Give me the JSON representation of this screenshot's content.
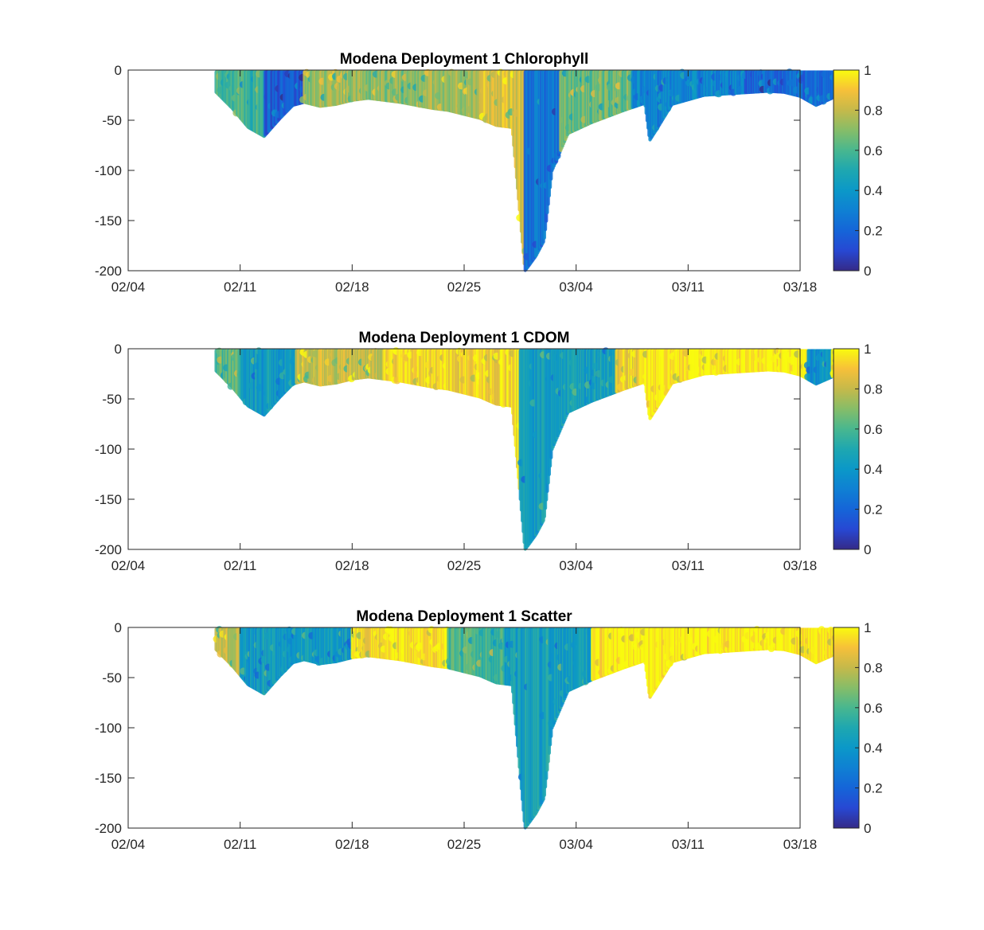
{
  "figure": {
    "background": "#ffffff"
  },
  "chart_data": [
    {
      "type": "scatter",
      "title": "Modena Deployment 1 Chlorophyll",
      "xlabel": "",
      "ylabel": "",
      "x_tick_labels": [
        "02/04",
        "02/11",
        "02/18",
        "02/25",
        "03/04",
        "03/11",
        "03/18"
      ],
      "y_tick_labels": [
        "0",
        "-50",
        "-100",
        "-150",
        "-200"
      ],
      "ylim": [
        -200,
        0
      ],
      "colorbar": {
        "ticks": [
          "0",
          "0.2",
          "0.4",
          "0.6",
          "0.8",
          "1"
        ],
        "range": [
          0,
          1
        ],
        "colormap": "parula"
      },
      "depth_envelope": {
        "day": [
          5.5,
          6.5,
          7.5,
          8.5,
          9.5,
          10.3,
          11.0,
          12.0,
          13.0,
          14.0,
          15.0,
          16.0,
          17.0,
          18.0,
          19.0,
          20.0,
          21.0,
          22.0,
          23.0,
          24.0,
          24.8,
          25.0,
          25.5,
          26.0,
          26.5,
          27.5,
          29.0,
          31.0,
          32.3,
          32.6,
          33.0,
          34.0,
          36.0,
          38.0,
          40.0,
          41.0,
          42.0,
          43.0,
          44.0,
          44.6
        ],
        "max_depth": [
          -22,
          -38,
          -57,
          -66,
          -48,
          -35,
          -32,
          -36,
          -34,
          -30,
          -28,
          -30,
          -32,
          -35,
          -38,
          -40,
          -44,
          -48,
          -55,
          -57,
          -200,
          -196,
          -185,
          -170,
          -100,
          -63,
          -52,
          -40,
          -33,
          -70,
          -60,
          -34,
          -25,
          -23,
          -21,
          -22,
          -26,
          -35,
          -28,
          -12
        ]
      },
      "segments": [
        {
          "from_day": 5.5,
          "to_day": 8.5,
          "value": 0.58
        },
        {
          "from_day": 8.5,
          "to_day": 11.0,
          "value": 0.18
        },
        {
          "from_day": 11.0,
          "to_day": 22.0,
          "value": 0.72
        },
        {
          "from_day": 22.0,
          "to_day": 24.8,
          "value": 0.86
        },
        {
          "from_day": 24.8,
          "to_day": 27.0,
          "value": 0.25
        },
        {
          "from_day": 27.0,
          "to_day": 31.5,
          "value": 0.66
        },
        {
          "from_day": 31.5,
          "to_day": 38.5,
          "value": 0.32
        },
        {
          "from_day": 38.5,
          "to_day": 44.6,
          "value": 0.2
        }
      ]
    },
    {
      "type": "scatter",
      "title": "Modena Deployment 1 CDOM",
      "xlabel": "",
      "ylabel": "",
      "x_tick_labels": [
        "02/04",
        "02/11",
        "02/18",
        "02/25",
        "03/04",
        "03/11",
        "03/18"
      ],
      "y_tick_labels": [
        "0",
        "-50",
        "-100",
        "-150",
        "-200"
      ],
      "ylim": [
        -200,
        0
      ],
      "colorbar": {
        "ticks": [
          "0",
          "0.2",
          "0.4",
          "0.6",
          "0.8",
          "1"
        ],
        "range": [
          0,
          1
        ],
        "colormap": "parula"
      },
      "depth_envelope": {
        "day": [
          5.5,
          6.5,
          7.5,
          8.5,
          9.5,
          10.3,
          11.0,
          12.0,
          13.0,
          14.0,
          15.0,
          16.0,
          17.0,
          18.0,
          19.0,
          20.0,
          21.0,
          22.0,
          23.0,
          24.0,
          24.8,
          25.0,
          25.5,
          26.0,
          26.5,
          27.5,
          29.0,
          31.0,
          32.3,
          32.6,
          33.0,
          34.0,
          36.0,
          38.0,
          40.0,
          41.0,
          42.0,
          43.0,
          44.0,
          44.6
        ],
        "max_depth": [
          -22,
          -38,
          -57,
          -66,
          -48,
          -35,
          -32,
          -36,
          -34,
          -30,
          -28,
          -30,
          -32,
          -35,
          -38,
          -40,
          -44,
          -48,
          -55,
          -57,
          -200,
          -196,
          -185,
          -170,
          -100,
          -63,
          -52,
          -40,
          -33,
          -70,
          -60,
          -34,
          -25,
          -23,
          -21,
          -22,
          -26,
          -35,
          -28,
          -12
        ]
      },
      "segments": [
        {
          "from_day": 5.5,
          "to_day": 7.0,
          "value": 0.6
        },
        {
          "from_day": 7.0,
          "to_day": 10.5,
          "value": 0.42
        },
        {
          "from_day": 10.5,
          "to_day": 16.0,
          "value": 0.82
        },
        {
          "from_day": 16.0,
          "to_day": 24.5,
          "value": 0.93
        },
        {
          "from_day": 24.5,
          "to_day": 30.5,
          "value": 0.44
        },
        {
          "from_day": 30.5,
          "to_day": 32.0,
          "value": 0.9
        },
        {
          "from_day": 32.0,
          "to_day": 42.5,
          "value": 1.0
        },
        {
          "from_day": 42.5,
          "to_day": 44.0,
          "value": 0.38
        },
        {
          "from_day": 44.0,
          "to_day": 44.6,
          "value": 1.0
        }
      ]
    },
    {
      "type": "scatter",
      "title": "Modena Deployment 1 Scatter",
      "xlabel": "",
      "ylabel": "",
      "x_tick_labels": [
        "02/04",
        "02/11",
        "02/18",
        "02/25",
        "03/04",
        "03/11",
        "03/18"
      ],
      "y_tick_labels": [
        "0",
        "-50",
        "-100",
        "-150",
        "-200"
      ],
      "ylim": [
        -200,
        0
      ],
      "colorbar": {
        "ticks": [
          "0",
          "0.2",
          "0.4",
          "0.6",
          "0.8",
          "1"
        ],
        "range": [
          0,
          1
        ],
        "colormap": "parula"
      },
      "depth_envelope": {
        "day": [
          5.5,
          6.5,
          7.5,
          8.5,
          9.5,
          10.3,
          11.0,
          12.0,
          13.0,
          14.0,
          15.0,
          16.0,
          17.0,
          18.0,
          19.0,
          20.0,
          21.0,
          22.0,
          23.0,
          24.0,
          24.8,
          25.0,
          25.5,
          26.0,
          26.5,
          27.5,
          29.0,
          31.0,
          32.3,
          32.6,
          33.0,
          34.0,
          36.0,
          38.0,
          40.0,
          41.0,
          42.0,
          43.0,
          44.0,
          44.6
        ],
        "max_depth": [
          -22,
          -38,
          -57,
          -66,
          -48,
          -35,
          -32,
          -36,
          -34,
          -30,
          -28,
          -30,
          -32,
          -35,
          -38,
          -40,
          -44,
          -48,
          -55,
          -57,
          -200,
          -196,
          -185,
          -170,
          -100,
          -63,
          -52,
          -40,
          -33,
          -70,
          -60,
          -34,
          -25,
          -23,
          -21,
          -22,
          -26,
          -35,
          -28,
          -12
        ]
      },
      "segments": [
        {
          "from_day": 5.5,
          "to_day": 7.0,
          "value": 0.78
        },
        {
          "from_day": 7.0,
          "to_day": 14.0,
          "value": 0.42
        },
        {
          "from_day": 14.0,
          "to_day": 20.0,
          "value": 0.96
        },
        {
          "from_day": 20.0,
          "to_day": 23.5,
          "value": 0.6
        },
        {
          "from_day": 23.5,
          "to_day": 29.0,
          "value": 0.45
        },
        {
          "from_day": 29.0,
          "to_day": 44.6,
          "value": 1.0
        }
      ]
    }
  ]
}
